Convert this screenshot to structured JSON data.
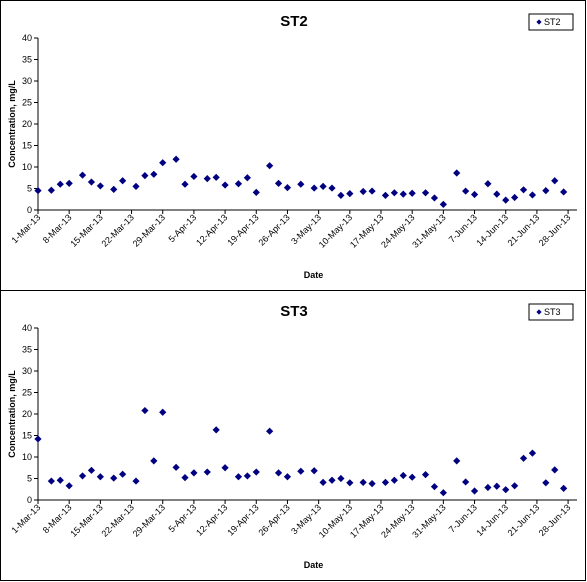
{
  "chart_data": [
    {
      "type": "scatter",
      "title": "ST2",
      "xlabel": "Date",
      "ylabel": "Concentration, mg/L",
      "ylim": [
        0,
        40
      ],
      "yticks": [
        "0",
        "5",
        "10",
        "15",
        "20",
        "25",
        "30",
        "35",
        "40"
      ],
      "xlim": [
        "1-Mar-13",
        "30-Jun-13"
      ],
      "xticks": [
        "1-Mar-13",
        "8-Mar-13",
        "15-Mar-13",
        "22-Mar-13",
        "29-Mar-13",
        "5-Apr-13",
        "12-Apr-13",
        "19-Apr-13",
        "26-Apr-13",
        "3-May-13",
        "10-May-13",
        "17-May-13",
        "24-May-13",
        "31-May-13",
        "7-Jun-13",
        "14-Jun-13",
        "21-Jun-13",
        "28-Jun-13"
      ],
      "grid": false,
      "legend": "top-right",
      "marker_color": "#000080",
      "series": [
        {
          "name": "ST2",
          "points": [
            {
              "x": "1-Mar-13",
              "y": 4.5
            },
            {
              "x": "4-Mar-13",
              "y": 4.6
            },
            {
              "x": "6-Mar-13",
              "y": 6.0
            },
            {
              "x": "8-Mar-13",
              "y": 6.2
            },
            {
              "x": "11-Mar-13",
              "y": 8.1
            },
            {
              "x": "13-Mar-13",
              "y": 6.5
            },
            {
              "x": "15-Mar-13",
              "y": 5.6
            },
            {
              "x": "18-Mar-13",
              "y": 4.8
            },
            {
              "x": "20-Mar-13",
              "y": 6.8
            },
            {
              "x": "23-Mar-13",
              "y": 5.5
            },
            {
              "x": "25-Mar-13",
              "y": 8.0
            },
            {
              "x": "27-Mar-13",
              "y": 8.3
            },
            {
              "x": "29-Mar-13",
              "y": 11.0
            },
            {
              "x": "1-Apr-13",
              "y": 11.8
            },
            {
              "x": "3-Apr-13",
              "y": 6.0
            },
            {
              "x": "5-Apr-13",
              "y": 7.8
            },
            {
              "x": "8-Apr-13",
              "y": 7.3
            },
            {
              "x": "10-Apr-13",
              "y": 7.6
            },
            {
              "x": "12-Apr-13",
              "y": 5.8
            },
            {
              "x": "15-Apr-13",
              "y": 6.1
            },
            {
              "x": "17-Apr-13",
              "y": 7.5
            },
            {
              "x": "19-Apr-13",
              "y": 4.1
            },
            {
              "x": "22-Apr-13",
              "y": 10.3
            },
            {
              "x": "24-Apr-13",
              "y": 6.2
            },
            {
              "x": "26-Apr-13",
              "y": 5.2
            },
            {
              "x": "29-Apr-13",
              "y": 6.0
            },
            {
              "x": "2-May-13",
              "y": 5.1
            },
            {
              "x": "4-May-13",
              "y": 5.5
            },
            {
              "x": "6-May-13",
              "y": 5.1
            },
            {
              "x": "8-May-13",
              "y": 3.4
            },
            {
              "x": "10-May-13",
              "y": 3.8
            },
            {
              "x": "13-May-13",
              "y": 4.3
            },
            {
              "x": "15-May-13",
              "y": 4.4
            },
            {
              "x": "18-May-13",
              "y": 3.4
            },
            {
              "x": "20-May-13",
              "y": 4.0
            },
            {
              "x": "22-May-13",
              "y": 3.7
            },
            {
              "x": "24-May-13",
              "y": 3.9
            },
            {
              "x": "27-May-13",
              "y": 4.0
            },
            {
              "x": "29-May-13",
              "y": 2.8
            },
            {
              "x": "31-May-13",
              "y": 1.3
            },
            {
              "x": "3-Jun-13",
              "y": 8.6
            },
            {
              "x": "5-Jun-13",
              "y": 4.4
            },
            {
              "x": "7-Jun-13",
              "y": 3.6
            },
            {
              "x": "10-Jun-13",
              "y": 6.1
            },
            {
              "x": "12-Jun-13",
              "y": 3.7
            },
            {
              "x": "14-Jun-13",
              "y": 2.3
            },
            {
              "x": "16-Jun-13",
              "y": 2.9
            },
            {
              "x": "18-Jun-13",
              "y": 4.7
            },
            {
              "x": "20-Jun-13",
              "y": 3.5
            },
            {
              "x": "23-Jun-13",
              "y": 4.5
            },
            {
              "x": "25-Jun-13",
              "y": 6.8
            },
            {
              "x": "27-Jun-13",
              "y": 4.2
            }
          ]
        }
      ]
    },
    {
      "type": "scatter",
      "title": "ST3",
      "xlabel": "Date",
      "ylabel": "Concentration, mg/L",
      "ylim": [
        0,
        40
      ],
      "yticks": [
        "0",
        "5",
        "10",
        "15",
        "20",
        "25",
        "30",
        "35",
        "40"
      ],
      "xlim": [
        "1-Mar-13",
        "30-Jun-13"
      ],
      "xticks": [
        "1-Mar-13",
        "8-Mar-13",
        "15-Mar-13",
        "22-Mar-13",
        "29-Mar-13",
        "5-Apr-13",
        "12-Apr-13",
        "19-Apr-13",
        "26-Apr-13",
        "3-May-13",
        "10-May-13",
        "17-May-13",
        "24-May-13",
        "31-May-13",
        "7-Jun-13",
        "14-Jun-13",
        "21-Jun-13",
        "28-Jun-13"
      ],
      "grid": false,
      "legend": "top-right",
      "marker_color": "#000080",
      "series": [
        {
          "name": "ST3",
          "points": [
            {
              "x": "1-Mar-13",
              "y": 14.2
            },
            {
              "x": "4-Mar-13",
              "y": 4.4
            },
            {
              "x": "6-Mar-13",
              "y": 4.6
            },
            {
              "x": "8-Mar-13",
              "y": 3.3
            },
            {
              "x": "11-Mar-13",
              "y": 5.6
            },
            {
              "x": "13-Mar-13",
              "y": 6.9
            },
            {
              "x": "15-Mar-13",
              "y": 5.4
            },
            {
              "x": "18-Mar-13",
              "y": 5.1
            },
            {
              "x": "20-Mar-13",
              "y": 6.0
            },
            {
              "x": "23-Mar-13",
              "y": 4.4
            },
            {
              "x": "25-Mar-13",
              "y": 20.8
            },
            {
              "x": "27-Mar-13",
              "y": 9.1
            },
            {
              "x": "29-Mar-13",
              "y": 20.4
            },
            {
              "x": "1-Apr-13",
              "y": 7.6
            },
            {
              "x": "3-Apr-13",
              "y": 5.2
            },
            {
              "x": "5-Apr-13",
              "y": 6.3
            },
            {
              "x": "8-Apr-13",
              "y": 6.5
            },
            {
              "x": "10-Apr-13",
              "y": 16.3
            },
            {
              "x": "12-Apr-13",
              "y": 7.5
            },
            {
              "x": "15-Apr-13",
              "y": 5.4
            },
            {
              "x": "17-Apr-13",
              "y": 5.6
            },
            {
              "x": "19-Apr-13",
              "y": 6.5
            },
            {
              "x": "22-Apr-13",
              "y": 16.0
            },
            {
              "x": "24-Apr-13",
              "y": 6.3
            },
            {
              "x": "26-Apr-13",
              "y": 5.4
            },
            {
              "x": "29-Apr-13",
              "y": 6.7
            },
            {
              "x": "2-May-13",
              "y": 6.8
            },
            {
              "x": "4-May-13",
              "y": 4.1
            },
            {
              "x": "6-May-13",
              "y": 4.6
            },
            {
              "x": "8-May-13",
              "y": 5.0
            },
            {
              "x": "10-May-13",
              "y": 4.0
            },
            {
              "x": "13-May-13",
              "y": 4.1
            },
            {
              "x": "15-May-13",
              "y": 3.8
            },
            {
              "x": "18-May-13",
              "y": 4.1
            },
            {
              "x": "20-May-13",
              "y": 4.6
            },
            {
              "x": "22-May-13",
              "y": 5.7
            },
            {
              "x": "24-May-13",
              "y": 5.3
            },
            {
              "x": "27-May-13",
              "y": 5.9
            },
            {
              "x": "29-May-13",
              "y": 3.1
            },
            {
              "x": "31-May-13",
              "y": 1.7
            },
            {
              "x": "3-Jun-13",
              "y": 9.1
            },
            {
              "x": "5-Jun-13",
              "y": 4.2
            },
            {
              "x": "7-Jun-13",
              "y": 2.1
            },
            {
              "x": "10-Jun-13",
              "y": 2.9
            },
            {
              "x": "12-Jun-13",
              "y": 3.2
            },
            {
              "x": "14-Jun-13",
              "y": 2.4
            },
            {
              "x": "16-Jun-13",
              "y": 3.3
            },
            {
              "x": "18-Jun-13",
              "y": 9.7
            },
            {
              "x": "20-Jun-13",
              "y": 10.9
            },
            {
              "x": "23-Jun-13",
              "y": 4.0
            },
            {
              "x": "25-Jun-13",
              "y": 7.0
            },
            {
              "x": "27-Jun-13",
              "y": 2.7
            }
          ]
        }
      ]
    }
  ]
}
